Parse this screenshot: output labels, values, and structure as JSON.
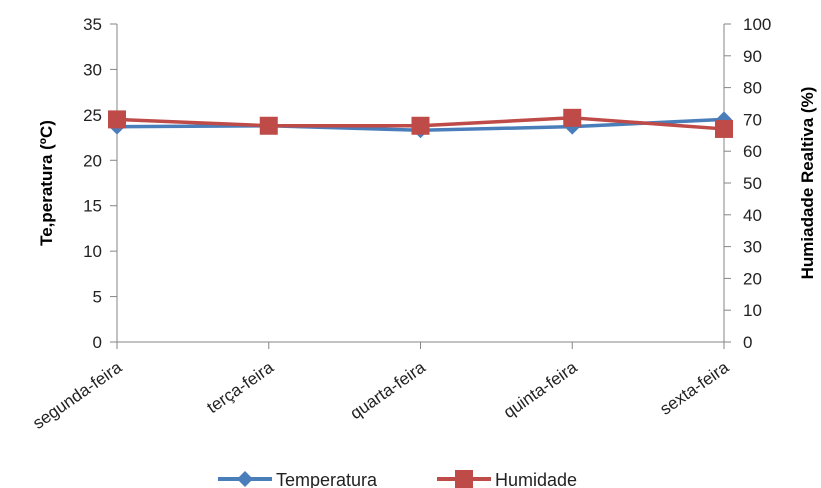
{
  "chart_data": {
    "type": "line",
    "categories": [
      "segunda-feira",
      "terça-feira",
      "quarta-feira",
      "quinta-feira",
      "sexta-feira"
    ],
    "ylabel": "Te,peratura (ºC)",
    "y2label": "Humiadade Realtiva (%)",
    "ylim": [
      0,
      35
    ],
    "y2lim": [
      0,
      100
    ],
    "yticks": [
      0,
      5,
      10,
      15,
      20,
      25,
      30,
      35
    ],
    "y2ticks": [
      0,
      10,
      20,
      30,
      40,
      50,
      60,
      70,
      80,
      90,
      100
    ],
    "grid": false,
    "legend": "bottom",
    "series": [
      {
        "name": "Temperatura",
        "axis": "left",
        "marker": "diamond",
        "color": "#4a7ebb",
        "values": [
          23.7,
          23.8,
          23.3,
          23.7,
          24.5
        ]
      },
      {
        "name": "Humidade",
        "axis": "right",
        "marker": "square",
        "color": "#be4b48",
        "values": [
          70,
          68,
          68,
          70.5,
          67
        ]
      }
    ]
  }
}
